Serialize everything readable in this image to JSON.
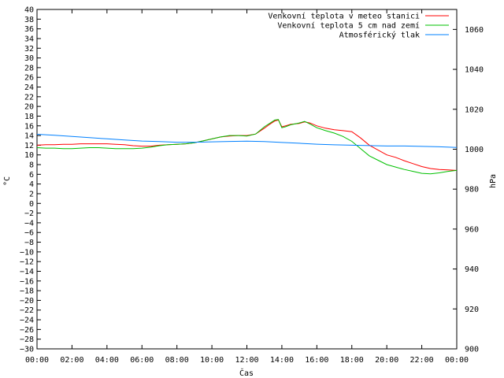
{
  "chart_data": {
    "type": "line",
    "xlabel": "Čas",
    "ylabel_left": "°C",
    "ylabel_right": "hPa",
    "x_ticks": [
      "00:00",
      "02:00",
      "04:00",
      "06:00",
      "08:00",
      "10:00",
      "12:00",
      "14:00",
      "16:00",
      "18:00",
      "20:00",
      "22:00",
      "00:00"
    ],
    "x_range": [
      0,
      24
    ],
    "ylim_left": [
      -30,
      40
    ],
    "y_ticks_left": [
      -30,
      -28,
      -26,
      -24,
      -22,
      -20,
      -18,
      -16,
      -14,
      -12,
      -10,
      -8,
      -6,
      -4,
      -2,
      0,
      2,
      4,
      6,
      8,
      10,
      12,
      14,
      16,
      18,
      20,
      22,
      24,
      26,
      28,
      30,
      32,
      34,
      36,
      38,
      40
    ],
    "ylim_right": [
      900,
      1070
    ],
    "y_ticks_right": [
      900,
      920,
      940,
      960,
      980,
      1000,
      1020,
      1040,
      1060
    ],
    "grid": false,
    "legend_position": "top-right",
    "series": [
      {
        "name": "Venkovní teplota v meteo stanici",
        "color": "#ff0000",
        "axis": "left",
        "x": [
          0,
          0.5,
          1,
          1.5,
          2,
          2.5,
          3,
          3.5,
          4,
          4.5,
          5,
          5.5,
          6,
          6.5,
          7,
          7.5,
          8,
          8.5,
          9,
          9.5,
          10,
          10.5,
          11,
          11.5,
          12,
          12.5,
          13,
          13.3,
          13.6,
          13.8,
          14,
          14.2,
          14.5,
          15,
          15.3,
          15.6,
          16,
          16.5,
          17,
          17.5,
          18,
          18.5,
          19,
          19.5,
          20,
          20.5,
          21,
          21.5,
          22,
          22.5,
          23,
          23.5,
          24
        ],
        "values": [
          12.0,
          12.1,
          12.1,
          12.2,
          12.2,
          12.3,
          12.3,
          12.3,
          12.3,
          12.2,
          12.1,
          11.9,
          11.8,
          11.8,
          12.0,
          12.1,
          12.2,
          12.3,
          12.5,
          12.9,
          13.3,
          13.7,
          13.9,
          14.0,
          14.0,
          14.3,
          15.5,
          16.3,
          17.0,
          17.2,
          15.8,
          16.0,
          16.3,
          16.5,
          16.8,
          16.6,
          16.0,
          15.5,
          15.2,
          15.0,
          14.8,
          13.5,
          12.0,
          11.0,
          10.0,
          9.5,
          8.8,
          8.2,
          7.6,
          7.2,
          7.0,
          6.9,
          6.8
        ]
      },
      {
        "name": "Venkovní teplota 5 cm nad zemí",
        "color": "#00c000",
        "axis": "left",
        "x": [
          0,
          0.5,
          1,
          1.5,
          2,
          2.5,
          3,
          3.5,
          4,
          4.5,
          5,
          5.5,
          6,
          6.5,
          7,
          7.5,
          8,
          8.5,
          9,
          9.5,
          10,
          10.5,
          11,
          11.5,
          12,
          12.5,
          13,
          13.3,
          13.6,
          13.8,
          14,
          14.2,
          14.5,
          15,
          15.3,
          15.6,
          16,
          16.5,
          17,
          17.5,
          18,
          18.5,
          19,
          19.5,
          20,
          20.5,
          21,
          21.5,
          22,
          22.5,
          23,
          23.5,
          24
        ],
        "values": [
          11.5,
          11.4,
          11.4,
          11.3,
          11.3,
          11.4,
          11.5,
          11.5,
          11.4,
          11.3,
          11.3,
          11.3,
          11.4,
          11.6,
          11.9,
          12.1,
          12.2,
          12.3,
          12.5,
          12.9,
          13.3,
          13.7,
          14.0,
          14.0,
          13.9,
          14.3,
          15.8,
          16.5,
          17.2,
          17.3,
          15.6,
          15.8,
          16.2,
          16.6,
          16.9,
          16.4,
          15.6,
          15.0,
          14.5,
          13.8,
          12.8,
          11.3,
          9.8,
          8.9,
          8.0,
          7.5,
          7.0,
          6.6,
          6.2,
          6.1,
          6.3,
          6.6,
          6.8
        ]
      },
      {
        "name": "Atmosférický tlak",
        "color": "#0080ff",
        "axis": "right",
        "x": [
          0,
          1,
          2,
          3,
          4,
          5,
          6,
          7,
          8,
          9,
          10,
          11,
          12,
          13,
          14,
          15,
          16,
          17,
          18,
          19,
          20,
          21,
          22,
          23,
          24
        ],
        "values": [
          1007.5,
          1007.0,
          1006.4,
          1005.8,
          1005.2,
          1004.6,
          1004.1,
          1003.8,
          1003.5,
          1003.5,
          1003.7,
          1003.9,
          1004.0,
          1003.8,
          1003.4,
          1003.0,
          1002.5,
          1002.2,
          1002.0,
          1001.8,
          1001.6,
          1001.6,
          1001.4,
          1001.2,
          1000.9
        ]
      }
    ]
  }
}
